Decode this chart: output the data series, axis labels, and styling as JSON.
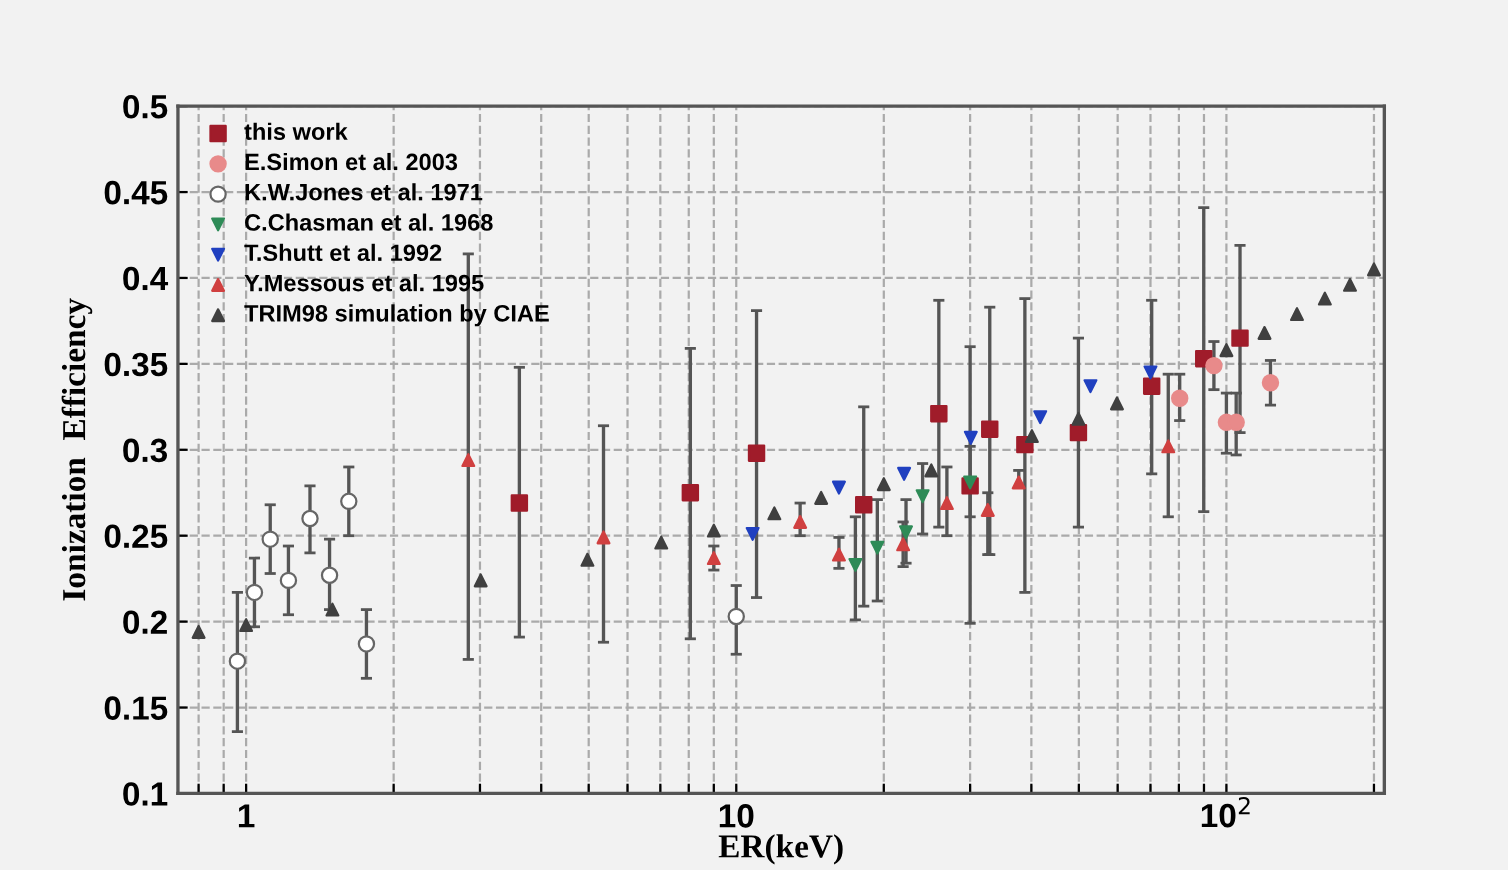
{
  "chart_data": {
    "type": "scatter",
    "xlabel": "ER(keV)",
    "ylabel": "Ionization  Efficiency",
    "log": "x",
    "grid": true,
    "legend": "top left",
    "xlim": [
      0.726,
      210
    ],
    "xticks": [
      {
        "value": 0.8,
        "label": null
      },
      {
        "value": 0.9,
        "label": null
      },
      1,
      {
        "value": 2,
        "label": null
      },
      {
        "value": 3,
        "label": null
      },
      {
        "value": 4,
        "label": null
      },
      {
        "value": 5,
        "label": null
      },
      {
        "value": 6,
        "label": null
      },
      {
        "value": 7,
        "label": null
      },
      {
        "value": 8,
        "label": null
      },
      {
        "value": 9,
        "label": null
      },
      10,
      {
        "value": 20,
        "label": null
      },
      {
        "value": 30,
        "label": null
      },
      {
        "value": 40,
        "label": null
      },
      {
        "value": 50,
        "label": null
      },
      {
        "value": 60,
        "label": null
      },
      {
        "value": 70,
        "label": null
      },
      {
        "value": 80,
        "label": null
      },
      {
        "value": 90,
        "label": null
      },
      {
        "value": 100,
        "label": "10$^{2}$"
      },
      {
        "value": 200,
        "label": null
      }
    ],
    "ylim": [
      0.1,
      0.5
    ],
    "yticks": [
      0.1,
      0.15,
      0.2,
      0.25,
      0.3,
      0.35,
      0.4,
      0.45,
      0.5
    ],
    "series": [
      {
        "name": "this work",
        "color": "#a01c2a",
        "marker": "square",
        "x": [
          3.61,
          8.06,
          11.0,
          18.2,
          25.9,
          30.0,
          32.9,
          38.8,
          49.9,
          70.4,
          89.9,
          106.6
        ],
        "values": [
          0.269,
          0.275,
          0.298,
          0.268,
          0.321,
          0.279,
          0.312,
          0.303,
          0.31,
          0.337,
          0.353,
          0.365
        ],
        "errors": [
          [
            0.191,
            0.348
          ],
          [
            0.19,
            0.359
          ],
          [
            0.214,
            0.381
          ],
          [
            0.209,
            0.325
          ],
          [
            0.255,
            0.387
          ],
          [
            0.199,
            0.36
          ],
          [
            0.239,
            0.383
          ],
          [
            0.217,
            0.388
          ],
          [
            0.255,
            0.365
          ],
          [
            0.286,
            0.387
          ],
          [
            0.264,
            0.441
          ],
          [
            0.31,
            0.419
          ]
        ]
      },
      {
        "name": "E.Simon et al. 2003",
        "color": "#e88a8a",
        "marker": "circle",
        "x": [
          80.3,
          94.3,
          100,
          104.7,
          123
        ],
        "values": [
          0.33,
          0.349,
          0.316,
          0.316,
          0.339
        ],
        "errors": [
          [
            0.317,
            0.344
          ],
          [
            0.335,
            0.363
          ],
          [
            0.298,
            0.333
          ],
          [
            0.297,
            0.333
          ],
          [
            0.326,
            0.352
          ]
        ]
      },
      {
        "name": "K.W.Jones et al. 1971",
        "color": "#ffffff",
        "marker": "circle",
        "x": [
          0.96,
          1.04,
          1.12,
          1.22,
          1.35,
          1.48,
          1.62,
          1.76,
          10.0
        ],
        "values": [
          0.177,
          0.217,
          0.248,
          0.224,
          0.26,
          0.227,
          0.27,
          0.187,
          0.203
        ],
        "errors": [
          [
            0.136,
            0.217
          ],
          [
            0.197,
            0.237
          ],
          [
            0.228,
            0.268
          ],
          [
            0.204,
            0.244
          ],
          [
            0.24,
            0.279
          ],
          [
            0.207,
            0.248
          ],
          [
            0.25,
            0.29
          ],
          [
            0.167,
            0.207
          ],
          [
            0.181,
            0.221
          ]
        ]
      },
      {
        "name": "C.Chasman et al. 1968",
        "color": "#2e8b57",
        "marker": "triangle_down",
        "x": [
          17.5,
          19.4,
          22.2,
          24.0,
          30.0
        ],
        "values": [
          0.233,
          0.243,
          0.252,
          0.273,
          0.281
        ],
        "errors": [
          [
            0.201,
            0.261
          ],
          [
            0.212,
            0.271
          ],
          [
            0.234,
            0.271
          ],
          [
            0.251,
            0.292
          ],
          [
            0.261,
            0.302
          ]
        ]
      },
      {
        "name": "T.Shutt et al. 1992",
        "color": "#2040c0",
        "marker": "triangle_down",
        "x": [
          10.8,
          16.2,
          22.0,
          30.1,
          41.7,
          52.8,
          70.0
        ],
        "values": [
          0.251,
          0.278,
          0.286,
          0.307,
          0.319,
          0.337,
          0.345
        ]
      },
      {
        "name": "Y.Messous et al. 1995",
        "color": "#d04040",
        "marker": "triangle",
        "x": [
          2.84,
          5.36,
          9.0,
          13.5,
          16.2,
          21.9,
          26.9,
          32.6,
          37.7,
          76.1
        ],
        "values": [
          0.294,
          0.249,
          0.237,
          0.258,
          0.239,
          0.245,
          0.269,
          0.265,
          0.281,
          0.302
        ],
        "errors": [
          [
            0.178,
            0.414
          ],
          [
            0.188,
            0.314
          ],
          [
            0.23,
            0.244
          ],
          [
            0.25,
            0.269
          ],
          [
            0.231,
            0.249
          ],
          [
            0.232,
            0.258
          ],
          [
            0.25,
            0.29
          ],
          [
            0.239,
            0.275
          ],
          [
            0.278,
            0.288
          ],
          [
            0.261,
            0.344
          ]
        ]
      },
      {
        "name": "TRIM98 simulation by CIAE",
        "color": "#404040",
        "marker": "triangle",
        "x": [
          0.8,
          1.0,
          1.5,
          3.01,
          4.97,
          7.03,
          9.0,
          11.96,
          14.9,
          20.0,
          25.0,
          40.1,
          49.9,
          59.8,
          100,
          119.6,
          139.3,
          158.8,
          178.7,
          200
        ],
        "values": [
          0.194,
          0.198,
          0.207,
          0.224,
          0.236,
          0.246,
          0.253,
          0.263,
          0.272,
          0.28,
          0.288,
          0.308,
          0.318,
          0.327,
          0.358,
          0.368,
          0.379,
          0.388,
          0.396,
          0.405
        ]
      }
    ]
  }
}
